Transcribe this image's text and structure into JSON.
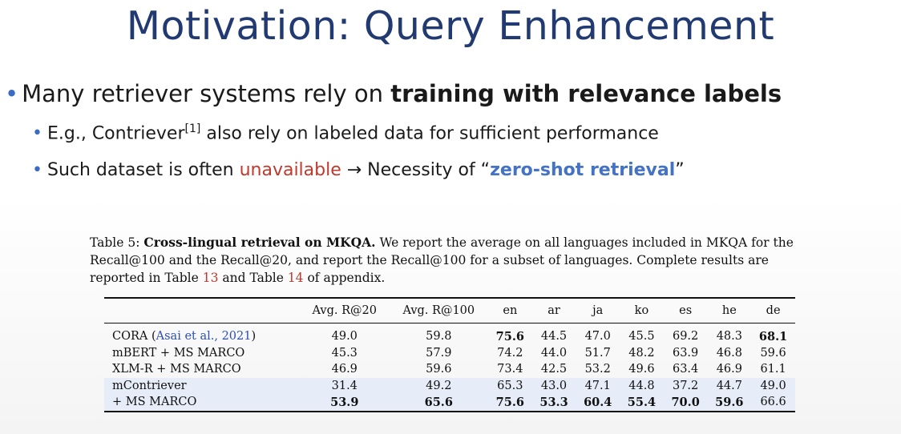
{
  "title": "Motivation: Query Enhancement",
  "bullets": {
    "main_prefix": "Many retriever systems rely on ",
    "main_bold": "training with relevance labels",
    "sub1_prefix": "E.g., Contriever",
    "sub1_sup": "[1]",
    "sub1_suffix": " also rely on labeled data for sufficient performance",
    "sub2_prefix": "Such dataset is often ",
    "sub2_red": "unavailable",
    "sub2_arrow": " → Necessity of “",
    "sub2_blue": "zero-shot retrieval",
    "sub2_close": "”"
  },
  "caption": {
    "label": "Table 5: ",
    "bold": "Cross-lingual retrieval on MKQA.",
    "text1": " We report the average on all languages included in MKQA for the Recall@100 and the Recall@20, and report the Recall@100 for a subset of languages. Complete results are reported in Table ",
    "ref1": "13",
    "text2": " and Table ",
    "ref2": "14",
    "text3": " of appendix."
  },
  "table": {
    "headers": [
      "",
      "Avg. R@20",
      "Avg. R@100",
      "en",
      "ar",
      "ja",
      "ko",
      "es",
      "he",
      "de"
    ],
    "rows": [
      {
        "model": "CORA (",
        "cite": "Asai et al., 2021",
        "model_close": ")",
        "values": [
          "49.0",
          "59.8",
          "75.6",
          "44.5",
          "47.0",
          "45.5",
          "69.2",
          "48.3",
          "68.1"
        ]
      },
      {
        "model": "mBERT + MS MARCO",
        "values": [
          "45.3",
          "57.9",
          "74.2",
          "44.0",
          "51.7",
          "48.2",
          "63.9",
          "46.8",
          "59.6"
        ]
      },
      {
        "model": "XLM-R + MS MARCO",
        "values": [
          "46.9",
          "59.6",
          "73.4",
          "42.5",
          "53.2",
          "49.6",
          "63.4",
          "46.9",
          "61.1"
        ]
      },
      {
        "model": "mContriever",
        "values": [
          "31.4",
          "49.2",
          "65.3",
          "43.0",
          "47.1",
          "44.8",
          "37.2",
          "44.7",
          "49.0"
        ]
      },
      {
        "model": "+ MS MARCO",
        "values": [
          "53.9",
          "65.6",
          "75.6",
          "53.3",
          "60.4",
          "55.4",
          "70.0",
          "59.6",
          "66.6"
        ]
      }
    ]
  }
}
